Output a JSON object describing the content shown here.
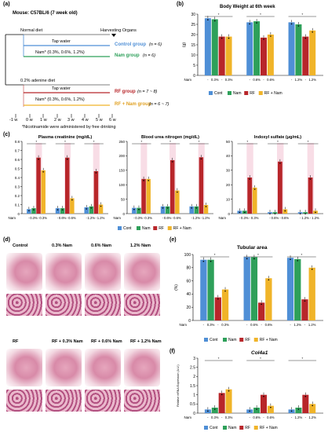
{
  "colors": {
    "cont": "#4f8fd6",
    "nam": "#2ea05a",
    "rf": "#b8262a",
    "rfnam": "#f0b429",
    "normal": "#4f8fd6",
    "adenine": "#d07070",
    "pinkhl": "#f3c6d6"
  },
  "panel_a": {
    "label": "(a)",
    "mouse": "Mouse:  C57BL/6 (7 week old)",
    "normal_diet": "Normal diet",
    "harvest": "Harvesting Organs",
    "tap1": "Tap water",
    "nam1": "Nam* (0.3%, 0.6%, 1.2%)",
    "control": "Control group",
    "control_n": "(n = 6)",
    "nam_group": "Nam group",
    "nam_n": "(n = 6)",
    "adenine": "0.2% adenine diet",
    "tap2": "Tap water",
    "nam2": "Nam* (0.3%, 0.6%, 1.2%)",
    "rf_group": "RF group",
    "rf_n": "(n = 7 ~ 8)",
    "rfnam_group": "RF + Nam group",
    "rfnam_n": "(n = 6 ~ 7)",
    "weeks": [
      "-1 w",
      "0 w",
      "1 w",
      "2 w",
      "3 w",
      "4 w",
      "5 w",
      "6 w"
    ],
    "footnote": "*Nicotinamide were administered by free drinking"
  },
  "panel_b": {
    "label": "(b)",
    "title": "Body Weight at 6th week",
    "chart_data": {
      "type": "bar",
      "ylabel": "(g)",
      "ylim": [
        0,
        30
      ],
      "yticks": [
        0,
        5,
        10,
        15,
        20,
        25,
        30
      ],
      "nam_row_label": "Nam",
      "groups": [
        {
          "doses": [
            "-",
            "0.3%",
            "-",
            "0.3%"
          ],
          "values": [
            28,
            27.5,
            19,
            19
          ]
        },
        {
          "doses": [
            "-",
            "0.6%",
            "-",
            "0.6%"
          ],
          "values": [
            26,
            26.5,
            18.5,
            20
          ]
        },
        {
          "doses": [
            "-",
            "1.2%",
            "-",
            "1.2%"
          ],
          "values": [
            26,
            25,
            19,
            22
          ]
        }
      ]
    }
  },
  "legend": {
    "cont": "Cont",
    "nam": "Nam",
    "rf": "RF",
    "rfnam": "RF + Nam"
  },
  "panel_c": {
    "label": "(c)",
    "plots": [
      {
        "title": "Plasma creatinine (mg/dL)",
        "ylim": [
          0,
          0.8
        ],
        "yticks": [
          "0",
          "0.1",
          "0.2",
          "0.3",
          "0.4",
          "0.5",
          "0.6",
          "0.7",
          "0.8"
        ],
        "groups": [
          {
            "doses": [
              "-",
              "0.3%",
              "-",
              "0.3%"
            ],
            "values": [
              0.05,
              0.06,
              0.62,
              0.48
            ]
          },
          {
            "doses": [
              "-",
              "0.6%",
              "-",
              "0.6%"
            ],
            "values": [
              0.06,
              0.06,
              0.62,
              0.17
            ]
          },
          {
            "doses": [
              "-",
              "1.2%",
              "-",
              "1.2%"
            ],
            "values": [
              0.07,
              0.08,
              0.47,
              0.1
            ]
          }
        ]
      },
      {
        "title": "Blood urea nitrogen (mg/dL)",
        "ylim": [
          0,
          250
        ],
        "yticks": [
          "0",
          "50",
          "100",
          "150",
          "200",
          "250"
        ],
        "groups": [
          {
            "doses": [
              "-",
              "0.3%",
              "-",
              "0.3%"
            ],
            "values": [
              20,
              20,
              120,
              120
            ]
          },
          {
            "doses": [
              "-",
              "0.6%",
              "-",
              "0.6%"
            ],
            "values": [
              25,
              25,
              185,
              80
            ]
          },
          {
            "doses": [
              "-",
              "1.2%",
              "-",
              "1.2%"
            ],
            "values": [
              25,
              25,
              195,
              30
            ]
          }
        ]
      },
      {
        "title": "Indoxyl sulfate (μg/mL)",
        "ylim": [
          0,
          50
        ],
        "yticks": [
          "0",
          "10",
          "20",
          "30",
          "40",
          "50"
        ],
        "groups": [
          {
            "doses": [
              "-",
              "0.3%",
              "-",
              "0.3%"
            ],
            "values": [
              2,
              2,
              25,
              18
            ]
          },
          {
            "doses": [
              "-",
              "0.6%",
              "-",
              "0.6%"
            ],
            "values": [
              1,
              1,
              36,
              3
            ]
          },
          {
            "doses": [
              "-",
              "1.2%",
              "-",
              "1.2%"
            ],
            "values": [
              1,
              1,
              25,
              2
            ]
          }
        ]
      }
    ]
  },
  "panel_d": {
    "label": "(d)",
    "row1": [
      "Control",
      "0.3% Nam",
      "0.6% Nam",
      "1.2% Nam"
    ],
    "row2": [
      "RF",
      "RF + 0.3% Nam",
      "RF + 0.6% Nam",
      "RF + 1.2% Nam"
    ]
  },
  "panel_e": {
    "label": "(e)",
    "title": "Tubular area",
    "chart_data": {
      "type": "bar",
      "ylabel": "(%)",
      "ylim": [
        0,
        100
      ],
      "yticks": [
        "0",
        "20",
        "40",
        "60",
        "80",
        "100"
      ],
      "groups": [
        {
          "doses": [
            "-",
            "0.3%",
            "-",
            "0.3%"
          ],
          "values": [
            92,
            92,
            35,
            47
          ]
        },
        {
          "doses": [
            "-",
            "0.6%",
            "-",
            "0.6%"
          ],
          "values": [
            96,
            96,
            27,
            64
          ]
        },
        {
          "doses": [
            "-",
            "1.2%",
            "-",
            "1.2%"
          ],
          "values": [
            95,
            93,
            32,
            80
          ]
        }
      ]
    }
  },
  "panel_f": {
    "label": "(f)",
    "title": "Col4a1",
    "chart_data": {
      "type": "bar",
      "ylabel": "Relative mRNA Expression (A.U.)",
      "ylim": [
        0,
        3
      ],
      "yticks": [
        "0",
        "0.5",
        "1",
        "1.5",
        "2",
        "2.5",
        "3"
      ],
      "groups": [
        {
          "doses": [
            "-",
            "0.3%",
            "-",
            "0.3%"
          ],
          "values": [
            0.2,
            0.3,
            1.1,
            1.3
          ]
        },
        {
          "doses": [
            "-",
            "0.6%",
            "-",
            "0.6%"
          ],
          "values": [
            0.2,
            0.3,
            1.0,
            0.4
          ]
        },
        {
          "doses": [
            "-",
            "1.2%",
            "-",
            "1.2%"
          ],
          "values": [
            0.2,
            0.3,
            1.0,
            0.5
          ]
        }
      ]
    }
  }
}
